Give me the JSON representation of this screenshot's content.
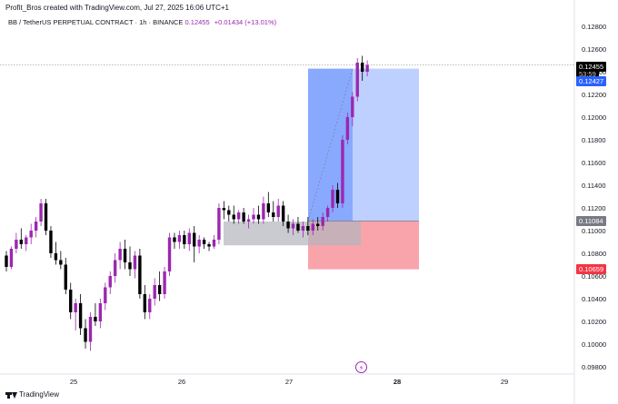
{
  "caption": "Profit_Bros created with TradingView.com, Jul 27, 2025 16:06 UTC+1",
  "legend": {
    "symbol": "BB / TetherUS PERPETUAL CONTRACT · 1h · BINANCE",
    "last": "0.12455",
    "change": "+0.01434 (+13.01%)"
  },
  "footer": {
    "logo_text": "TradingView"
  },
  "price_labels": {
    "last": "0.12455",
    "countdown": "53:59",
    "target": "0.12427",
    "entry": "0.11084",
    "stop": "0.10659"
  },
  "colors": {
    "bull": "#9c27b0",
    "bear": "#000000",
    "target_zone": "#2962ff",
    "stop_zone": "#f23645",
    "range_box": "#b2b5be"
  },
  "chart_data": {
    "type": "candlestick",
    "title": "",
    "xlabel": "",
    "ylabel": "",
    "x_ticks": [
      "25",
      "26",
      "27",
      "28",
      "29"
    ],
    "y_ticks": [
      0.098,
      0.1,
      0.102,
      0.104,
      0.106,
      0.108,
      0.11,
      0.112,
      0.114,
      0.116,
      0.118,
      0.12,
      0.122,
      0.124,
      0.126,
      0.128
    ],
    "ylim": [
      0.0972,
      0.1296
    ],
    "grid": false,
    "position_long": {
      "entry": 0.11084,
      "target": 0.12427,
      "stop": 0.10659
    },
    "range_box": {
      "top": 0.1108,
      "bottom": 0.1087
    },
    "candles": [
      [
        0.1078,
        0.1082,
        0.1064,
        0.1068
      ],
      [
        0.1068,
        0.1086,
        0.1066,
        0.1084
      ],
      [
        0.1084,
        0.1098,
        0.108,
        0.1092
      ],
      [
        0.1092,
        0.1102,
        0.1084,
        0.1088
      ],
      [
        0.1088,
        0.1096,
        0.1082,
        0.1094
      ],
      [
        0.1094,
        0.1106,
        0.1088,
        0.11
      ],
      [
        0.11,
        0.1112,
        0.1094,
        0.1108
      ],
      [
        0.1108,
        0.1128,
        0.1104,
        0.1124
      ],
      [
        0.1124,
        0.1128,
        0.1096,
        0.11
      ],
      [
        0.11,
        0.1104,
        0.1076,
        0.108
      ],
      [
        0.108,
        0.109,
        0.107,
        0.1074
      ],
      [
        0.1074,
        0.1082,
        0.1066,
        0.107
      ],
      [
        0.107,
        0.1076,
        0.1044,
        0.1048
      ],
      [
        0.1048,
        0.1054,
        0.1022,
        0.1028
      ],
      [
        0.1028,
        0.104,
        0.1012,
        0.1036
      ],
      [
        0.1036,
        0.1044,
        0.1008,
        0.1014
      ],
      [
        0.1014,
        0.1022,
        0.0996,
        0.1002
      ],
      [
        0.1002,
        0.1028,
        0.0994,
        0.1024
      ],
      [
        0.1024,
        0.1036,
        0.1016,
        0.102
      ],
      [
        0.102,
        0.104,
        0.1014,
        0.1036
      ],
      [
        0.1036,
        0.1054,
        0.103,
        0.105
      ],
      [
        0.105,
        0.1064,
        0.1044,
        0.106
      ],
      [
        0.106,
        0.108,
        0.1054,
        0.1074
      ],
      [
        0.1074,
        0.109,
        0.1066,
        0.1084
      ],
      [
        0.1084,
        0.1092,
        0.1066,
        0.1072
      ],
      [
        0.1072,
        0.1086,
        0.106,
        0.1066
      ],
      [
        0.1066,
        0.1082,
        0.1058,
        0.1078
      ],
      [
        0.1078,
        0.1084,
        0.104,
        0.1044
      ],
      [
        0.1044,
        0.1052,
        0.1022,
        0.1028
      ],
      [
        0.1028,
        0.1044,
        0.1022,
        0.104
      ],
      [
        0.104,
        0.1058,
        0.1034,
        0.1052
      ],
      [
        0.1052,
        0.1064,
        0.1038,
        0.1044
      ],
      [
        0.1044,
        0.1068,
        0.104,
        0.1064
      ],
      [
        0.1064,
        0.1098,
        0.106,
        0.1094
      ],
      [
        0.1094,
        0.1098,
        0.1084,
        0.109
      ],
      [
        0.109,
        0.11,
        0.1084,
        0.1096
      ],
      [
        0.1096,
        0.11,
        0.1084,
        0.1088
      ],
      [
        0.1088,
        0.1102,
        0.1082,
        0.1098
      ],
      [
        0.1098,
        0.1104,
        0.1072,
        0.1086
      ],
      [
        0.1086,
        0.1096,
        0.108,
        0.1092
      ],
      [
        0.1092,
        0.1094,
        0.1084,
        0.1088
      ],
      [
        0.1088,
        0.109,
        0.1082,
        0.1086
      ],
      [
        0.1086,
        0.1096,
        0.1084,
        0.1092
      ],
      [
        0.1092,
        0.1124,
        0.1088,
        0.112
      ],
      [
        0.112,
        0.1126,
        0.111,
        0.1118
      ],
      [
        0.1118,
        0.1122,
        0.1108,
        0.1114
      ],
      [
        0.1114,
        0.1122,
        0.1106,
        0.111
      ],
      [
        0.111,
        0.1118,
        0.1106,
        0.1116
      ],
      [
        0.1116,
        0.112,
        0.1106,
        0.1108
      ],
      [
        0.1108,
        0.1114,
        0.1102,
        0.111
      ],
      [
        0.111,
        0.112,
        0.1106,
        0.1114
      ],
      [
        0.1114,
        0.1122,
        0.1106,
        0.111
      ],
      [
        0.111,
        0.113,
        0.1106,
        0.1124
      ],
      [
        0.1124,
        0.1134,
        0.1112,
        0.1116
      ],
      [
        0.1116,
        0.1126,
        0.1108,
        0.1112
      ],
      [
        0.1112,
        0.1128,
        0.1108,
        0.1122
      ],
      [
        0.1122,
        0.1126,
        0.1104,
        0.1108
      ],
      [
        0.1108,
        0.1114,
        0.1098,
        0.1102
      ],
      [
        0.1102,
        0.111,
        0.1096,
        0.1106
      ],
      [
        0.1106,
        0.1112,
        0.1098,
        0.11
      ],
      [
        0.11,
        0.1108,
        0.1094,
        0.1104
      ],
      [
        0.1104,
        0.1112,
        0.1096,
        0.11
      ],
      [
        0.11,
        0.111,
        0.1096,
        0.1106
      ],
      [
        0.1106,
        0.1112,
        0.11,
        0.1104
      ],
      [
        0.1104,
        0.1116,
        0.11,
        0.1112
      ],
      [
        0.1112,
        0.1122,
        0.1108,
        0.112
      ],
      [
        0.112,
        0.114,
        0.1116,
        0.1136
      ],
      [
        0.1136,
        0.1142,
        0.112,
        0.1124
      ],
      [
        0.1124,
        0.1184,
        0.112,
        0.118
      ],
      [
        0.118,
        0.1204,
        0.1176,
        0.12
      ],
      [
        0.12,
        0.1222,
        0.1192,
        0.1218
      ],
      [
        0.1218,
        0.1252,
        0.1214,
        0.1248
      ],
      [
        0.1248,
        0.1254,
        0.1232,
        0.124
      ],
      [
        0.124,
        0.125,
        0.1236,
        0.1246
      ]
    ]
  }
}
